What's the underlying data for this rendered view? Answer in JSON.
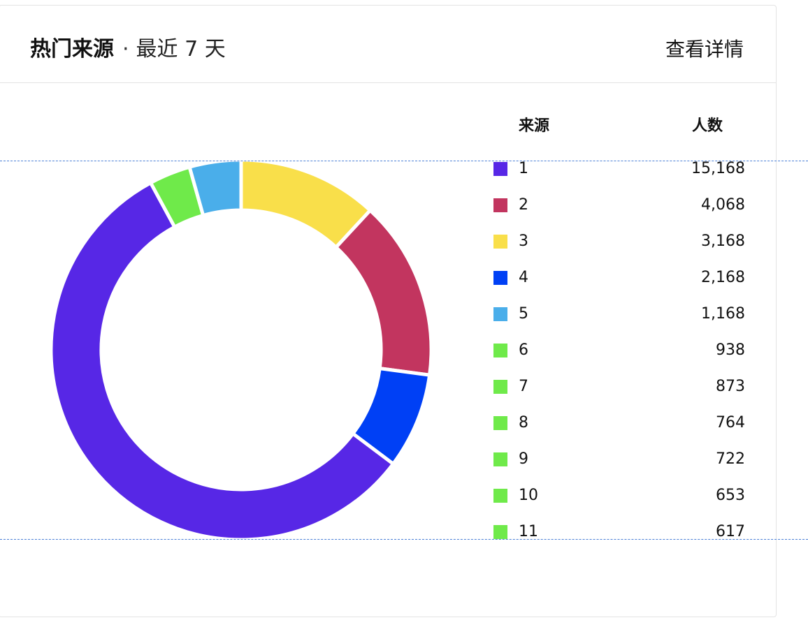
{
  "header": {
    "title": "热门来源",
    "separator": "·",
    "subtitle": "最近 7 天",
    "details_label": "查看详情"
  },
  "legend_headers": {
    "source": "来源",
    "count": "人数"
  },
  "chart_data": {
    "type": "pie",
    "style": "donut",
    "columns": [
      "来源",
      "人数"
    ],
    "categories": [
      "1",
      "2",
      "3",
      "4",
      "5",
      "6",
      "7",
      "8",
      "9",
      "10",
      "11"
    ],
    "values": [
      15168,
      4068,
      3168,
      2168,
      1168,
      938,
      873,
      764,
      722,
      653,
      617
    ],
    "value_labels": [
      "15,168",
      "4,068",
      "3,168",
      "2,168",
      "1,168",
      "938",
      "873",
      "764",
      "722",
      "653",
      "617"
    ],
    "donut_order": [
      "3",
      "2",
      "4",
      "1",
      "6",
      "5"
    ],
    "colors": {
      "1": "#5727e6",
      "2": "#c2355f",
      "3": "#f9df4a",
      "4": "#0040f5",
      "5": "#4aaeea",
      "6": "#6fea4a",
      "7": "#6fea4a",
      "8": "#6fea4a",
      "9": "#6fea4a",
      "10": "#6fea4a",
      "11": "#6fea4a"
    },
    "legend_position": "right",
    "grid": false
  }
}
